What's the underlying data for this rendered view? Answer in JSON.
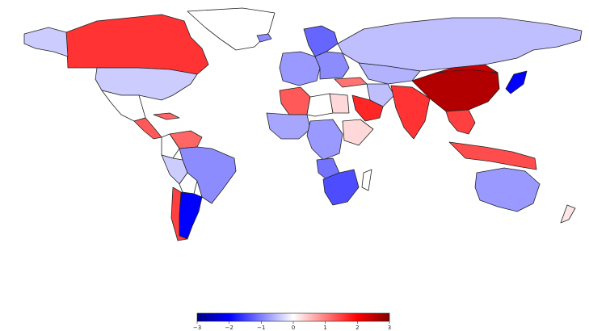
{
  "colorbar": {
    "min": -3,
    "max": 3,
    "ticks": [
      "−3",
      "−2",
      "−1",
      "0",
      "1",
      "2",
      "3"
    ],
    "stops": [
      "#00007f",
      "#0000ff",
      "#ffffff",
      "#ff0000",
      "#7f0000"
    ]
  },
  "regions": [
    {
      "name": "Greenland",
      "value": null
    },
    {
      "name": "Canada",
      "value": 1.6
    },
    {
      "name": "Alaska",
      "value": -0.4
    },
    {
      "name": "United States",
      "value": -0.4
    },
    {
      "name": "Mexico",
      "value": null
    },
    {
      "name": "Central America",
      "value": 1.3
    },
    {
      "name": "Cuba",
      "value": 1.2
    },
    {
      "name": "Venezuela",
      "value": 1.2
    },
    {
      "name": "Colombia",
      "value": null
    },
    {
      "name": "Brazil",
      "value": -0.9
    },
    {
      "name": "Peru",
      "value": -0.4
    },
    {
      "name": "Bolivia",
      "value": null
    },
    {
      "name": "Argentina",
      "value": -2.0
    },
    {
      "name": "Chile",
      "value": 1.5
    },
    {
      "name": "Iceland",
      "value": -0.9
    },
    {
      "name": "Scandinavia",
      "value": -1.2
    },
    {
      "name": "Western Europe",
      "value": -0.8
    },
    {
      "name": "Eastern Europe",
      "value": -0.9
    },
    {
      "name": "Russia",
      "value": -0.5
    },
    {
      "name": "Kazakhstan",
      "value": -0.6
    },
    {
      "name": "Turkey",
      "value": 1.1
    },
    {
      "name": "Iran",
      "value": -0.5
    },
    {
      "name": "Saudi Arabia",
      "value": 1.7
    },
    {
      "name": "Algeria",
      "value": 1.3
    },
    {
      "name": "Libya",
      "value": null
    },
    {
      "name": "Egypt",
      "value": 0.3
    },
    {
      "name": "West Africa",
      "value": -0.7
    },
    {
      "name": "Central Africa",
      "value": -0.8
    },
    {
      "name": "Ethiopia",
      "value": 0.3
    },
    {
      "name": "Angola",
      "value": -1.1
    },
    {
      "name": "Southern Africa",
      "value": -1.4
    },
    {
      "name": "Madagascar",
      "value": null
    },
    {
      "name": "India",
      "value": 1.6
    },
    {
      "name": "China",
      "value": 2.6
    },
    {
      "name": "Mongolia",
      "value": 2.4
    },
    {
      "name": "Southeast Asia",
      "value": 1.5
    },
    {
      "name": "Indonesia",
      "value": 1.4
    },
    {
      "name": "Japan",
      "value": -2.0
    },
    {
      "name": "Australia",
      "value": -0.8
    },
    {
      "name": "New Zealand",
      "value": 0.2
    }
  ]
}
